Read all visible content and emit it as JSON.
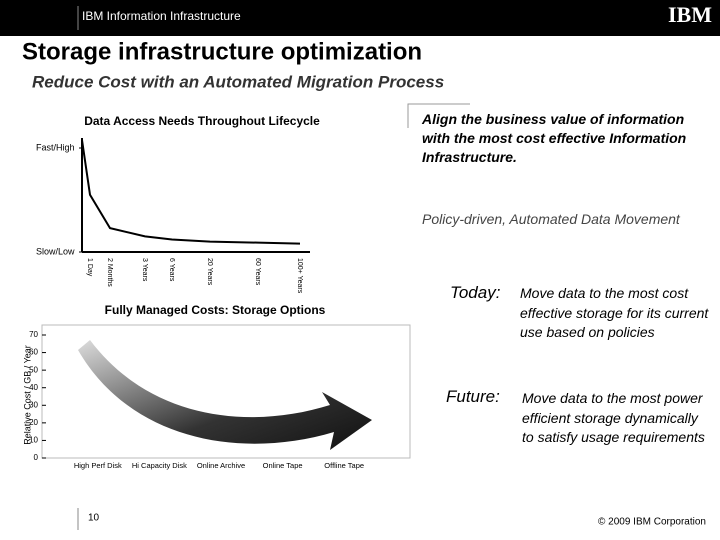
{
  "header": {
    "section": "IBM Information Infrastructure",
    "logo": "IBM"
  },
  "title": "Storage infrastructure optimization",
  "subtitle": "Reduce Cost with an Automated Migration Process",
  "statements": {
    "align": "Align the business value of information with the most cost effective Information Infrastructure.",
    "policy": "Policy-driven, Automated Data Movement",
    "today_label": "Today:",
    "today": "Move data to the most cost effective storage for its current use based on policies",
    "future_label": "Future:",
    "future": "Move data to the most power efficient storage dynamically to satisfy usage requirements"
  },
  "footer": {
    "page": "10",
    "copyright": "© 2009 IBM Corporation"
  },
  "chart_data": [
    {
      "type": "line",
      "title": "Data Access Needs Throughout Lifecycle",
      "categories": [
        "1 Day",
        "2 Months",
        "3 Years",
        "6 Years",
        "20 Years",
        "60 Years",
        "100+ Years"
      ],
      "values": [
        55,
        23,
        15,
        12,
        10,
        9,
        8
      ],
      "color": "#000000",
      "ylim": [
        0,
        100
      ],
      "yticks": [
        {
          "value": 100,
          "label": "Fast/High"
        },
        {
          "value": 0,
          "label": "Slow/Low"
        }
      ]
    },
    {
      "type": "bar",
      "title": "Fully Managed Costs: Storage Options",
      "y_label": "Relative Cost / GB / Year",
      "categories": [
        "High Perf Disk",
        "Hi Capacity Disk",
        "Online Archive",
        "Online Tape",
        "Offline Tape"
      ],
      "ylim": [
        0,
        70
      ],
      "yticks": [
        0,
        10,
        20,
        30,
        40,
        50,
        60,
        70
      ]
    }
  ]
}
